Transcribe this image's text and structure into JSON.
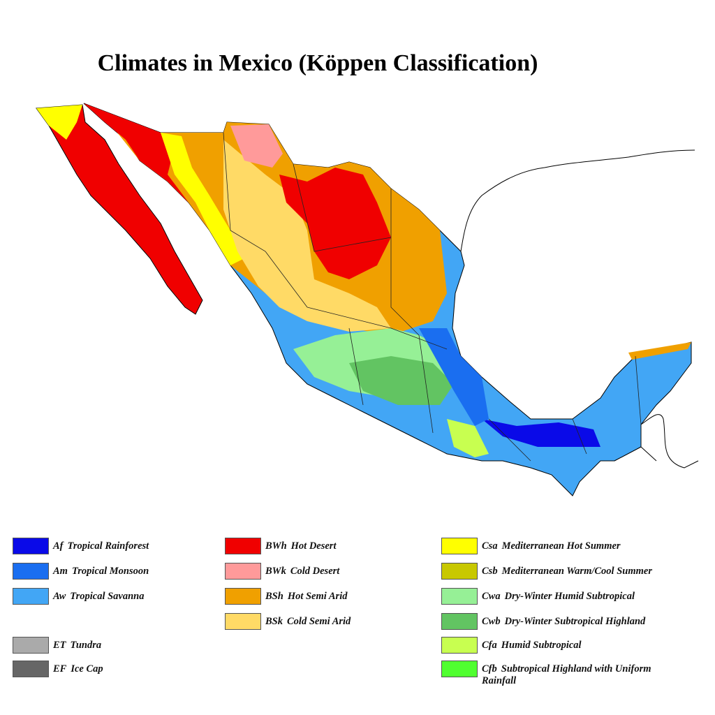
{
  "title": "Climates in Mexico (Köppen Classification)",
  "legend": [
    {
      "code": "Af",
      "label": "Tropical Rainforest",
      "color": "#0a0ae8"
    },
    {
      "code": "Am",
      "label": "Tropical Monsoon",
      "color": "#1a6ef0"
    },
    {
      "code": "Aw",
      "label": "Tropical Savanna",
      "color": "#42a6f5"
    },
    {
      "code": "ET",
      "label": "Tundra",
      "color": "#aaaaaa"
    },
    {
      "code": "EF",
      "label": "Ice Cap",
      "color": "#666666"
    },
    {
      "code": "BWh",
      "label": "Hot Desert",
      "color": "#f00000"
    },
    {
      "code": "BWk",
      "label": "Cold Desert",
      "color": "#ff9a9a"
    },
    {
      "code": "BSh",
      "label": "Hot Semi Arid",
      "color": "#f0a000"
    },
    {
      "code": "BSk",
      "label": "Cold Semi Arid",
      "color": "#ffda66"
    },
    {
      "code": "Csa",
      "label": "Mediterranean Hot Summer",
      "color": "#ffff00"
    },
    {
      "code": "Csb",
      "label": "Mediterranean Warm/Cool Summer",
      "color": "#c8c800"
    },
    {
      "code": "Cwa",
      "label": "Dry-Winter Humid Subtropical",
      "color": "#96f096"
    },
    {
      "code": "Cwb",
      "label": "Dry-Winter Subtropical Highland",
      "color": "#62c462"
    },
    {
      "code": "Cfa",
      "label": "Humid Subtropical",
      "color": "#c8ff50"
    },
    {
      "code": "Cfb",
      "label": "Subtropical Highland with Uniform Rainfall",
      "color": "#50ff30"
    }
  ]
}
